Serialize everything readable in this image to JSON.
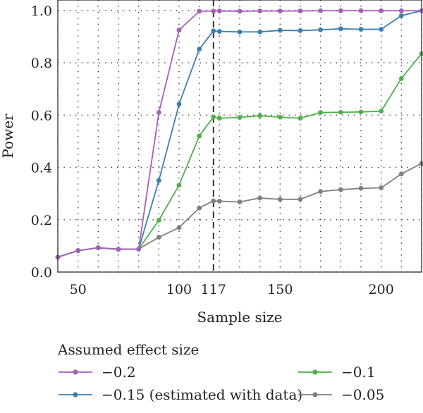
{
  "chart_data": {
    "type": "line",
    "xlabel": "Sample size",
    "ylabel": "Power",
    "xlim": [
      40,
      220
    ],
    "ylim": [
      0.0,
      1.04
    ],
    "xticks": [
      50,
      100,
      117,
      150,
      200
    ],
    "yticks": [
      0.0,
      0.2,
      0.4,
      0.6,
      0.8,
      1.0
    ],
    "ytick_labels": [
      "0.0",
      "0.2",
      "0.4",
      "0.6",
      "0.8",
      "1.0"
    ],
    "grid": true,
    "grid_style": "dotted",
    "reference_line": {
      "x": 117,
      "style": "dashed"
    },
    "legend_title": "Assumed effect size",
    "legend_placement": "bottom",
    "x": [
      40,
      50,
      60,
      70,
      80,
      90,
      100,
      110,
      117,
      120,
      130,
      140,
      150,
      160,
      170,
      180,
      190,
      200,
      210,
      220
    ],
    "series": [
      {
        "name": "−0.2",
        "color": "#a45fb8",
        "values": [
          0.057,
          0.082,
          0.093,
          0.087,
          0.088,
          0.61,
          0.925,
          0.997,
          0.998,
          0.998,
          0.997,
          0.998,
          0.998,
          0.998,
          0.999,
          0.999,
          0.999,
          0.999,
          0.999,
          0.999
        ]
      },
      {
        "name": "−0.15 (estimated with data)",
        "color": "#3b7fb0",
        "values": [
          0.057,
          0.082,
          0.093,
          0.087,
          0.088,
          0.35,
          0.642,
          0.852,
          0.922,
          0.92,
          0.918,
          0.918,
          0.924,
          0.923,
          0.926,
          0.93,
          0.928,
          0.928,
          0.98,
          0.999
        ]
      },
      {
        "name": "−0.1",
        "color": "#4db04a",
        "values": [
          0.057,
          0.082,
          0.093,
          0.087,
          0.088,
          0.198,
          0.332,
          0.52,
          0.593,
          0.588,
          0.591,
          0.598,
          0.592,
          0.588,
          0.61,
          0.611,
          0.612,
          0.615,
          0.74,
          0.835
        ]
      },
      {
        "name": "−0.05",
        "color": "#808080",
        "values": [
          0.057,
          0.082,
          0.093,
          0.087,
          0.088,
          0.133,
          0.17,
          0.245,
          0.272,
          0.271,
          0.268,
          0.283,
          0.278,
          0.278,
          0.308,
          0.315,
          0.32,
          0.322,
          0.375,
          0.415
        ]
      }
    ]
  }
}
